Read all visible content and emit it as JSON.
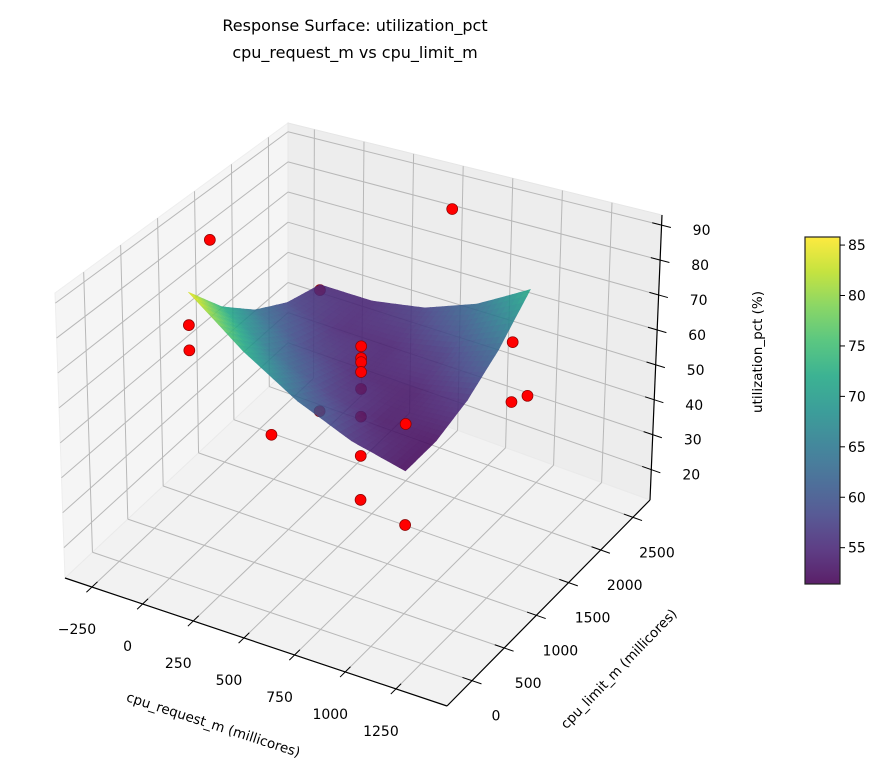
{
  "chart_data": {
    "type": "surface3d",
    "title": "Response Surface: utilization_pct",
    "subtitle": "cpu_request_m vs cpu_limit_m",
    "xlabel": "cpu_request_m (millicores)",
    "ylabel": "cpu_limit_m (millicores)",
    "zlabel": "utilization_pct (%)",
    "xlim": [
      -383,
      1502
    ],
    "ylim": [
      -388,
      2765
    ],
    "zlim": [
      11.3,
      92.9
    ],
    "xticks": [
      -250,
      0,
      250,
      500,
      750,
      1000,
      1250
    ],
    "yticks": [
      0,
      500,
      1000,
      1500,
      2000,
      2500
    ],
    "zticks": [
      20,
      30,
      40,
      50,
      60,
      70,
      80,
      90
    ],
    "grid": true,
    "surface": {
      "colormap": "viridis",
      "x": [
        -50,
        215,
        480,
        745,
        1010
      ],
      "y": [
        480,
        935,
        1390,
        1845,
        2300
      ],
      "z": [
        [
          85.0,
          72.3,
          62.5,
          55.8,
          52.0
        ],
        [
          73.0,
          63.4,
          56.8,
          53.1,
          52.5
        ],
        [
          64.0,
          57.5,
          54.0,
          53.5,
          56.0
        ],
        [
          58.0,
          54.6,
          54.3,
          56.9,
          62.5
        ],
        [
          55.0,
          54.8,
          57.5,
          63.3,
          72.0
        ]
      ]
    },
    "points": {
      "color": "#ff0000",
      "data": [
        [
          -50,
          480,
          75.3
        ],
        [
          -50,
          480,
          67.9
        ],
        [
          -50,
          2300,
          53.3
        ],
        [
          -50,
          2300,
          15.0
        ],
        [
          1010,
          480,
          65.2
        ],
        [
          1010,
          480,
          36.8
        ],
        [
          1010,
          2300,
          40.8
        ],
        [
          1230,
          1390,
          59.3
        ],
        [
          1230,
          1390,
          76.3
        ],
        [
          480,
          2677,
          80.9
        ],
        [
          480,
          103,
          59.4
        ],
        [
          -270,
          1390,
          81.6
        ],
        [
          480,
          1390,
          62.5
        ],
        [
          480,
          1390,
          59.0
        ],
        [
          480,
          1390,
          57.8
        ],
        [
          480,
          1390,
          54.9
        ],
        [
          480,
          1390,
          49.9
        ],
        [
          480,
          1390,
          41.7
        ],
        [
          480,
          1390,
          30.1
        ],
        [
          480,
          1390,
          17.1
        ]
      ]
    },
    "colorbar": {
      "range": [
        51.4,
        85.8
      ],
      "ticks": [
        55,
        60,
        65,
        70,
        75,
        80,
        85
      ]
    }
  }
}
